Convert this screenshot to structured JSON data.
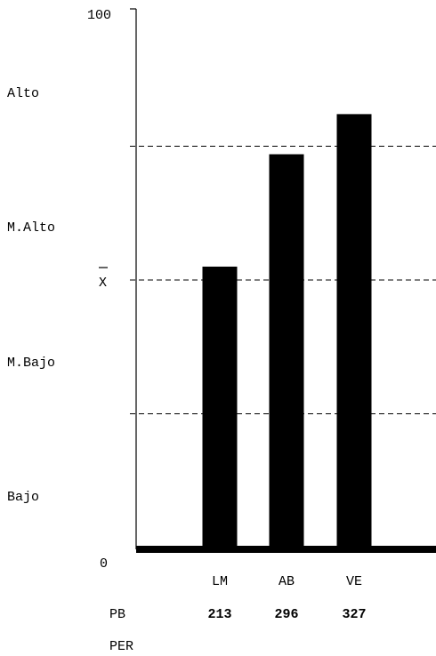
{
  "chart_data": {
    "type": "bar",
    "categories": [
      "LM",
      "AB",
      "VE"
    ],
    "values": [
      52.5,
      73.5,
      81
    ],
    "ylim": [
      0,
      100
    ],
    "y_ticks": [
      "0",
      "100"
    ],
    "mean_label": "X",
    "reference_lines": [
      25,
      50,
      75
    ],
    "bands": [
      "Bajo",
      "M.Bajo",
      "M.Alto",
      "Alto"
    ],
    "rows": [
      {
        "label": "PB",
        "values": [
          "213",
          "296",
          "327"
        ]
      },
      {
        "label": "PER",
        "values": []
      }
    ],
    "grid": false,
    "bar_color": "#000000"
  }
}
